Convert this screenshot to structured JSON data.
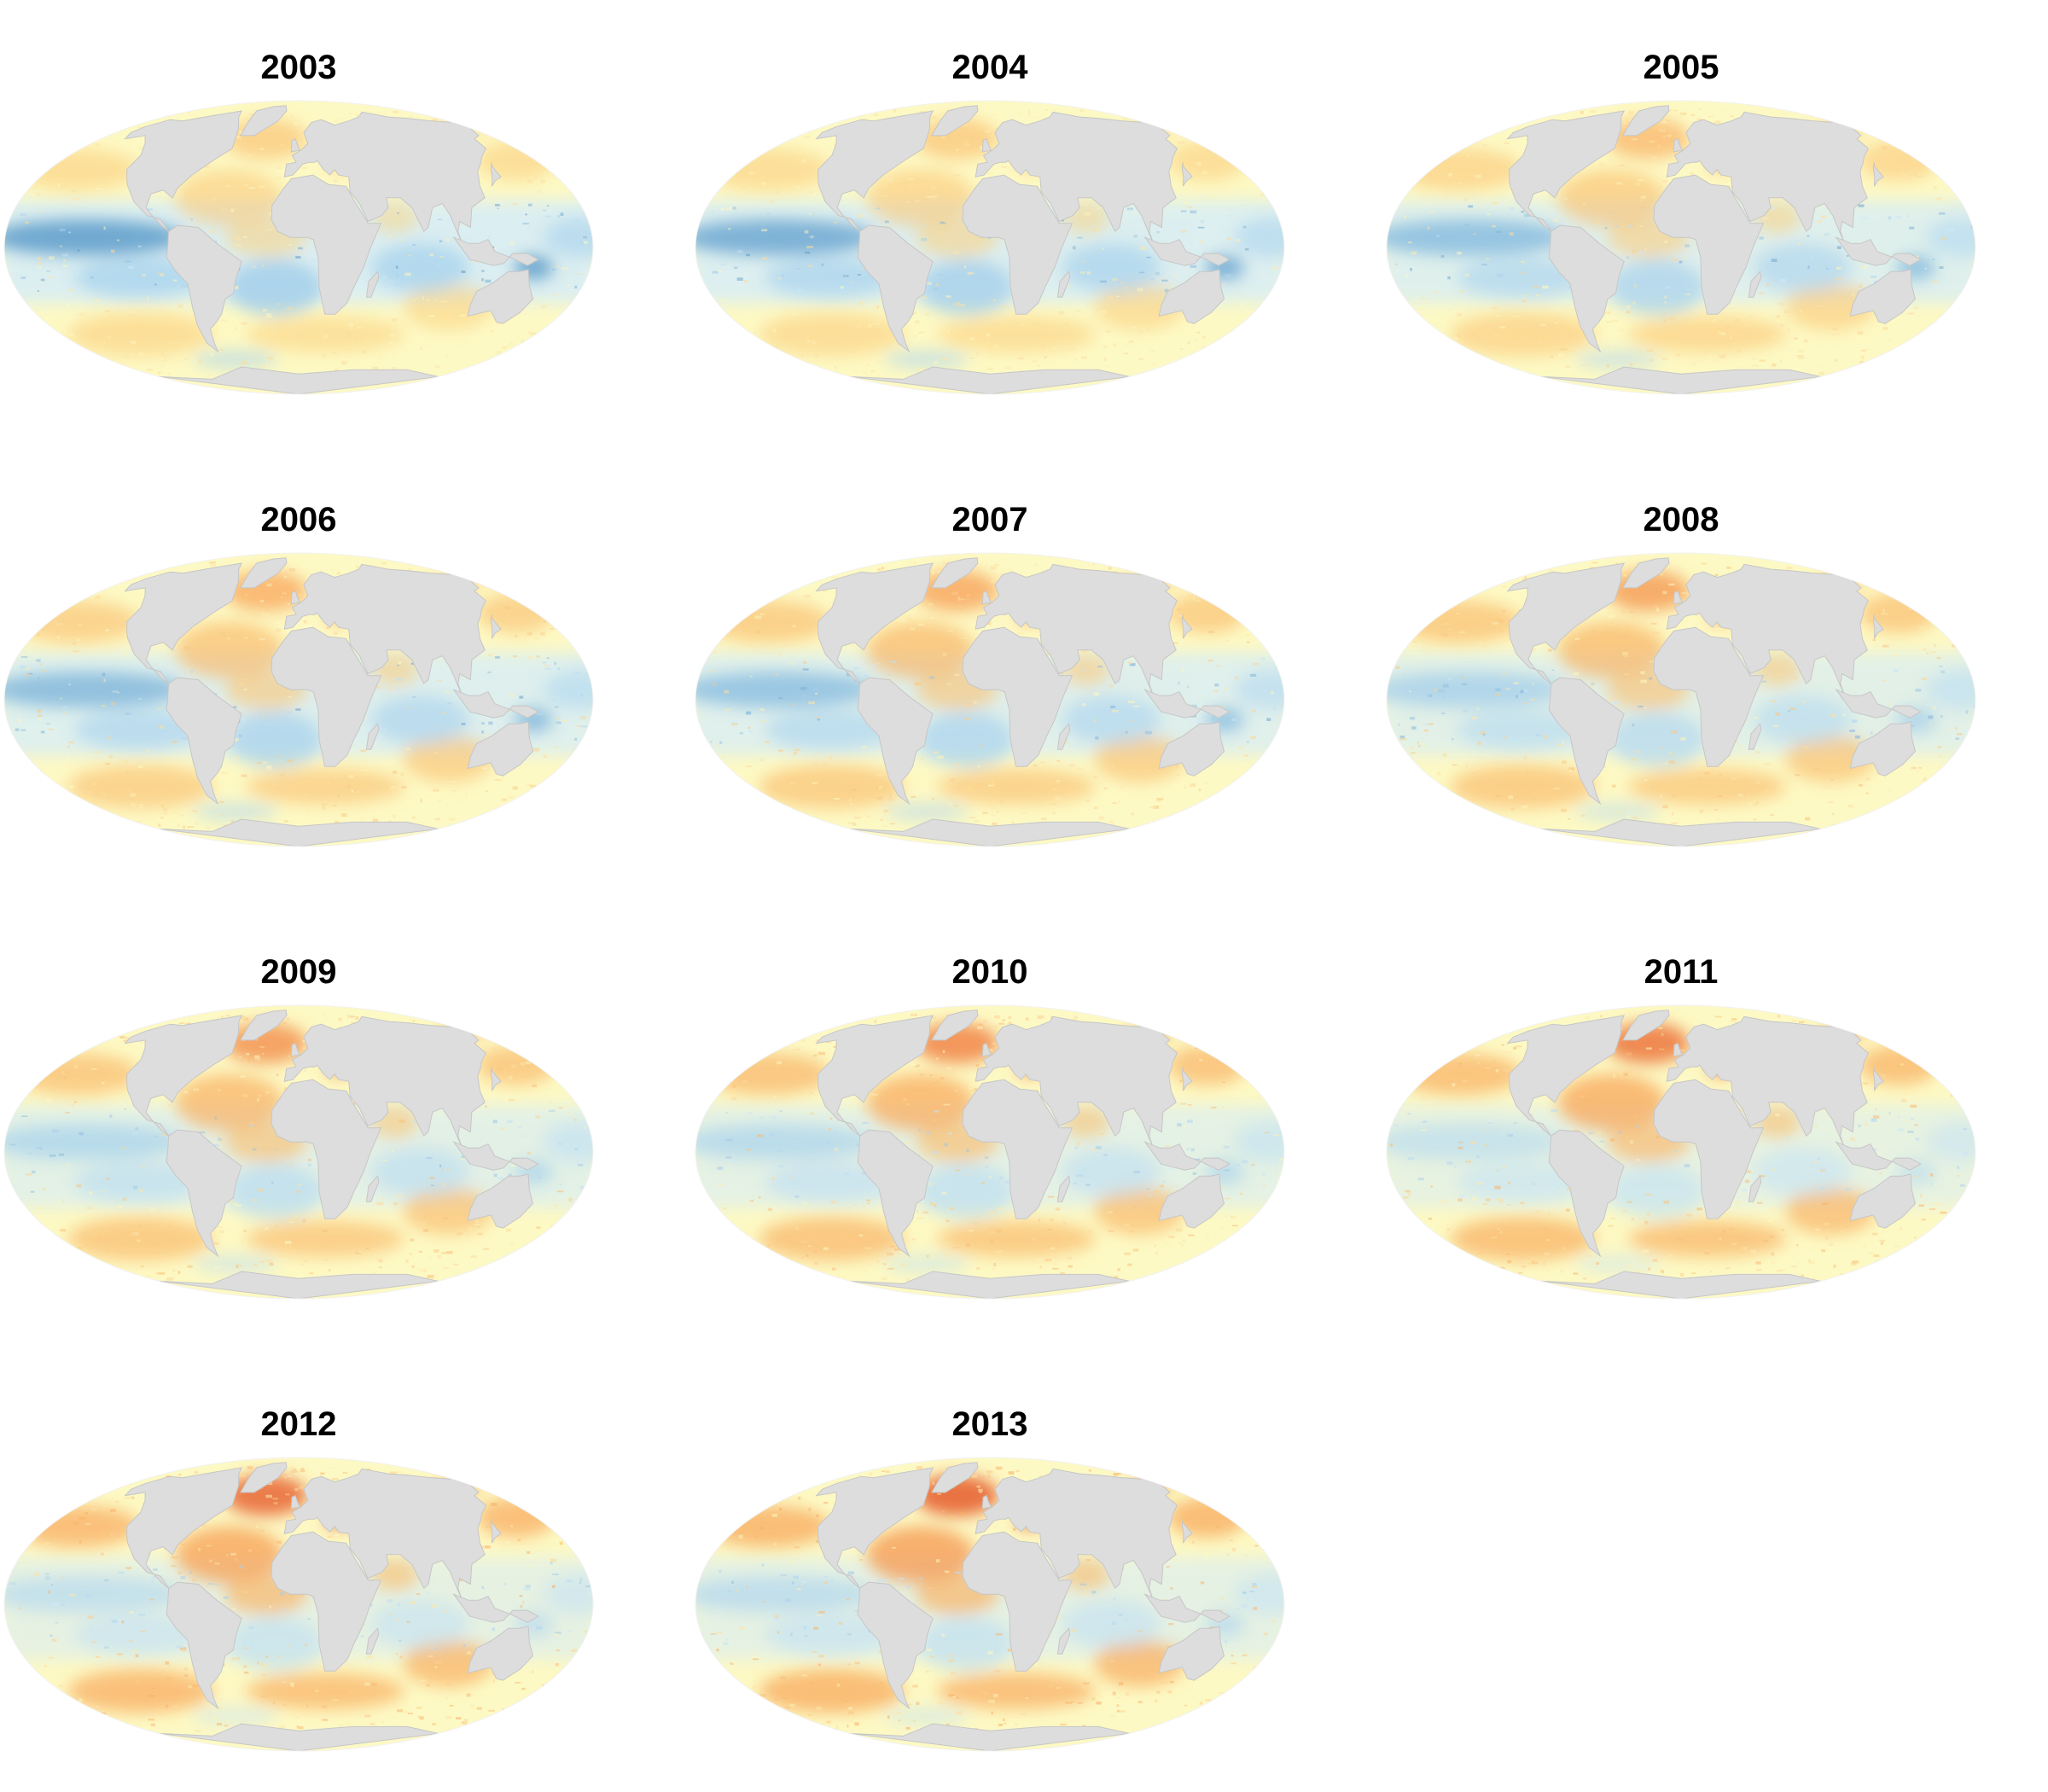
{
  "figure": {
    "panels": [
      {
        "year": "2003",
        "warm_anomaly": 0.35,
        "cool_anomaly": 0.85
      },
      {
        "year": "2004",
        "warm_anomaly": 0.38,
        "cool_anomaly": 0.8
      },
      {
        "year": "2005",
        "warm_anomaly": 0.48,
        "cool_anomaly": 0.7
      },
      {
        "year": "2006",
        "warm_anomaly": 0.58,
        "cool_anomaly": 0.72
      },
      {
        "year": "2007",
        "warm_anomaly": 0.62,
        "cool_anomaly": 0.68
      },
      {
        "year": "2008",
        "warm_anomaly": 0.66,
        "cool_anomaly": 0.55
      },
      {
        "year": "2009",
        "warm_anomaly": 0.7,
        "cool_anomaly": 0.5
      },
      {
        "year": "2010",
        "warm_anomaly": 0.76,
        "cool_anomaly": 0.45
      },
      {
        "year": "2011",
        "warm_anomaly": 0.82,
        "cool_anomaly": 0.32
      },
      {
        "year": "2012",
        "warm_anomaly": 0.88,
        "cool_anomaly": 0.36
      },
      {
        "year": "2013",
        "warm_anomaly": 0.92,
        "cool_anomaly": 0.4
      }
    ]
  },
  "colors": {
    "land": "#dddddd",
    "land_outline": "#c6c6c6",
    "ocean_neutral": "#fdf9c4",
    "cool_light": "#d4ecfb",
    "cool_mid": "#9ccbe9",
    "cool_dark": "#3f85bb",
    "warm_light": "#fde48d",
    "warm_mid": "#f8a357",
    "warm_dark": "#e3542d"
  }
}
